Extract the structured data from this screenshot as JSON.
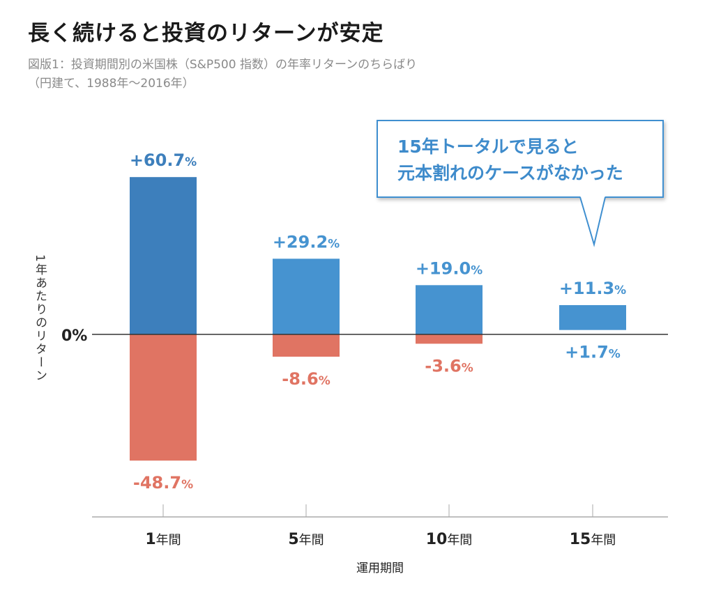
{
  "title": "長く続けると投資のリターンが安定",
  "subtitle": {
    "line1": "図版1：投資期間別の米国株（S&P500 指数）の年率リターンのちらばり",
    "line2": "（円建て、1988年〜2016年）"
  },
  "callout": {
    "line1": "15年トータルで見ると",
    "line2": "元本割れのケースがなかった"
  },
  "colors": {
    "positive_dark": "#3d7fbc",
    "positive": "#4693d0",
    "negative": "#e07463",
    "axis": "#aaaaaa",
    "zero_line": "#333333"
  },
  "chart_data": {
    "type": "bar",
    "title": "長く続けると投資のリターンが安定",
    "xlabel": "運用期間",
    "ylabel": "1年あたりのリターン",
    "zero_label": "0%",
    "categories": [
      "1年間",
      "5年間",
      "10年間",
      "15年間"
    ],
    "category_numbers": [
      "1",
      "5",
      "10",
      "15"
    ],
    "category_unit": "年間",
    "max": [
      60.7,
      29.2,
      19.0,
      11.3
    ],
    "min": [
      -48.7,
      -8.6,
      -3.6,
      1.7
    ],
    "max_labels": [
      "+60.7",
      "+29.2",
      "+19.0",
      "+11.3"
    ],
    "min_labels": [
      "-48.7",
      "-8.6",
      "-3.6",
      "+1.7"
    ],
    "unit": "%",
    "ylim": [
      -55,
      65
    ]
  }
}
